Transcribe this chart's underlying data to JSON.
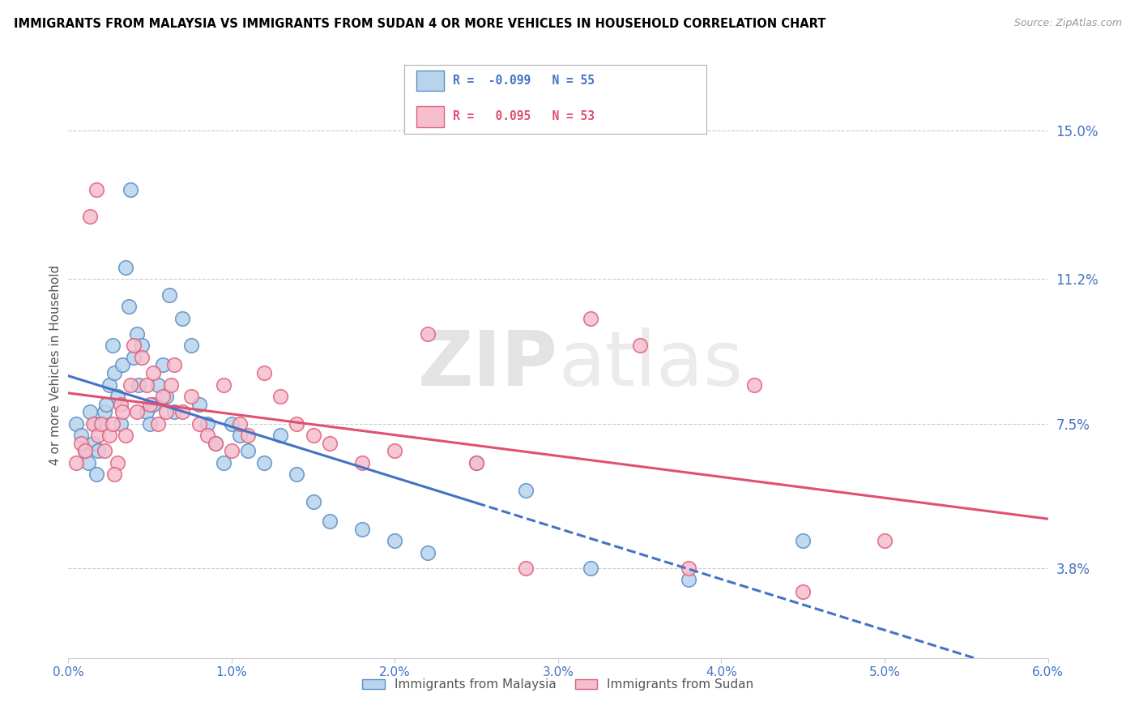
{
  "title": "IMMIGRANTS FROM MALAYSIA VS IMMIGRANTS FROM SUDAN 4 OR MORE VEHICLES IN HOUSEHOLD CORRELATION CHART",
  "source": "Source: ZipAtlas.com",
  "ylabel": "4 or more Vehicles in Household",
  "xlim": [
    0.0,
    6.0
  ],
  "ylim": [
    1.5,
    16.5
  ],
  "yticks": [
    3.8,
    7.5,
    11.2,
    15.0
  ],
  "ytick_labels": [
    "3.8%",
    "7.5%",
    "11.2%",
    "15.0%"
  ],
  "xticks": [
    0,
    1,
    2,
    3,
    4,
    5,
    6
  ],
  "xtick_labels": [
    "0.0%",
    "1.0%",
    "2.0%",
    "3.0%",
    "4.0%",
    "5.0%",
    "6.0%"
  ],
  "color_malaysia_fill": "#b8d4ed",
  "color_malaysia_edge": "#5b8ec4",
  "color_sudan_fill": "#f5bece",
  "color_sudan_edge": "#e0607a",
  "color_malaysia_line": "#4472c4",
  "color_sudan_line": "#e05070",
  "watermark": "ZIPatlas",
  "malaysia_R": -0.099,
  "malaysia_N": 55,
  "sudan_R": 0.095,
  "sudan_N": 53,
  "mal_x": [
    0.05,
    0.08,
    0.1,
    0.12,
    0.13,
    0.15,
    0.16,
    0.17,
    0.18,
    0.2,
    0.22,
    0.23,
    0.25,
    0.27,
    0.28,
    0.3,
    0.32,
    0.33,
    0.35,
    0.37,
    0.4,
    0.42,
    0.43,
    0.45,
    0.48,
    0.5,
    0.52,
    0.55,
    0.58,
    0.6,
    0.62,
    0.65,
    0.7,
    0.75,
    0.8,
    0.85,
    0.9,
    0.95,
    1.0,
    1.05,
    1.1,
    1.2,
    1.3,
    1.4,
    1.5,
    1.6,
    1.8,
    2.0,
    2.2,
    2.5,
    2.8,
    3.2,
    3.8,
    4.5,
    0.38
  ],
  "mal_y": [
    7.5,
    7.2,
    6.8,
    6.5,
    7.8,
    7.0,
    7.5,
    6.2,
    6.8,
    7.5,
    7.8,
    8.0,
    8.5,
    9.5,
    8.8,
    8.2,
    7.5,
    9.0,
    11.5,
    10.5,
    9.2,
    9.8,
    8.5,
    9.5,
    7.8,
    7.5,
    8.0,
    8.5,
    9.0,
    8.2,
    10.8,
    7.8,
    10.2,
    9.5,
    8.0,
    7.5,
    7.0,
    6.5,
    7.5,
    7.2,
    6.8,
    6.5,
    7.2,
    6.2,
    5.5,
    5.0,
    4.8,
    4.5,
    4.2,
    6.5,
    5.8,
    3.8,
    3.5,
    4.5,
    13.5
  ],
  "sud_x": [
    0.05,
    0.08,
    0.1,
    0.13,
    0.15,
    0.17,
    0.18,
    0.2,
    0.22,
    0.25,
    0.27,
    0.3,
    0.32,
    0.33,
    0.35,
    0.38,
    0.4,
    0.42,
    0.45,
    0.48,
    0.5,
    0.52,
    0.55,
    0.58,
    0.6,
    0.63,
    0.65,
    0.7,
    0.75,
    0.8,
    0.85,
    0.9,
    0.95,
    1.0,
    1.05,
    1.1,
    1.2,
    1.3,
    1.4,
    1.5,
    1.6,
    1.8,
    2.0,
    2.2,
    2.5,
    2.8,
    3.2,
    3.5,
    3.8,
    4.2,
    4.5,
    5.0,
    0.28
  ],
  "sud_y": [
    6.5,
    7.0,
    6.8,
    12.8,
    7.5,
    13.5,
    7.2,
    7.5,
    6.8,
    7.2,
    7.5,
    6.5,
    8.0,
    7.8,
    7.2,
    8.5,
    9.5,
    7.8,
    9.2,
    8.5,
    8.0,
    8.8,
    7.5,
    8.2,
    7.8,
    8.5,
    9.0,
    7.8,
    8.2,
    7.5,
    7.2,
    7.0,
    8.5,
    6.8,
    7.5,
    7.2,
    8.8,
    8.2,
    7.5,
    7.2,
    7.0,
    6.5,
    6.8,
    9.8,
    6.5,
    3.8,
    10.2,
    9.5,
    3.8,
    8.5,
    3.2,
    4.5,
    6.2
  ]
}
